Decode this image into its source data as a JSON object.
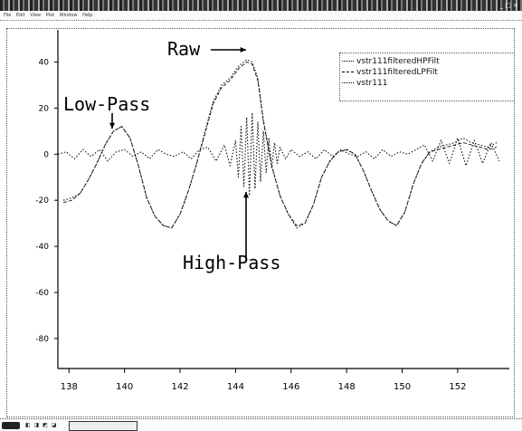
{
  "window": {
    "title": "",
    "controls": "_ □ ×"
  },
  "menubar": {
    "items": [
      "File",
      "Edit",
      "View",
      "Plot",
      "Window",
      "Help"
    ]
  },
  "annotations": {
    "raw": "Raw",
    "low_pass": "Low-Pass",
    "high_pass": "High-Pass"
  },
  "legend": {
    "entries": [
      {
        "label": "vstr111filteredHPFilt",
        "style": "dotted"
      },
      {
        "label": "vstr111filteredLPFilt",
        "style": "dashed"
      },
      {
        "label": "vstr111",
        "style": "dotted"
      }
    ]
  },
  "taskbar": {
    "tray": "◧ ◨ ◩ ◪",
    "task_label": "",
    "clock": ""
  },
  "chart_data": {
    "type": "line",
    "title": "",
    "xlabel": "",
    "ylabel": "",
    "xlim": [
      137.6,
      153.6
    ],
    "ylim": [
      -93,
      50
    ],
    "x_ticks": [
      138,
      140,
      142,
      144,
      146,
      148,
      150,
      152
    ],
    "y_ticks": [
      40,
      20,
      0,
      -20,
      -40,
      -60,
      -80
    ],
    "grid": false,
    "legend_position": "top-right",
    "series": [
      {
        "name": "vstr111",
        "style": "dotted",
        "x": [
          137.8,
          138.1,
          138.4,
          138.7,
          139.0,
          139.3,
          139.6,
          139.9,
          140.2,
          140.5,
          140.8,
          141.1,
          141.4,
          141.7,
          142.0,
          142.3,
          142.6,
          142.9,
          143.2,
          143.5,
          143.8,
          144.1,
          144.4,
          144.6,
          144.8,
          145.0,
          145.3,
          145.6,
          145.9,
          146.2,
          146.5,
          146.8,
          147.1,
          147.4,
          147.7,
          148.0,
          148.3,
          148.6,
          148.9,
          149.2,
          149.5,
          149.8,
          150.1,
          150.4,
          150.7,
          151.0,
          151.3,
          151.6,
          151.9,
          152.2,
          152.5,
          152.8,
          153.1,
          153.4
        ],
        "values": [
          -20,
          -19,
          -17,
          -11,
          -4,
          4,
          10,
          12,
          7,
          -5,
          -19,
          -27,
          -31,
          -32,
          -26,
          -16,
          -4,
          10,
          23,
          30,
          33,
          38,
          41,
          40,
          33,
          15,
          -5,
          -18,
          -26,
          -32,
          -30,
          -22,
          -10,
          -3,
          1,
          2,
          0,
          -7,
          -16,
          -24,
          -29,
          -31,
          -25,
          -13,
          -4,
          1,
          3,
          4,
          5,
          7,
          5,
          4,
          3,
          5
        ]
      },
      {
        "name": "vstr111filteredLPFilt",
        "style": "dashed",
        "x": [
          137.8,
          138.1,
          138.4,
          138.7,
          139.0,
          139.3,
          139.6,
          139.9,
          140.2,
          140.5,
          140.8,
          141.1,
          141.4,
          141.7,
          142.0,
          142.3,
          142.6,
          142.9,
          143.2,
          143.5,
          143.8,
          144.1,
          144.4,
          144.6,
          144.8,
          145.0,
          145.3,
          145.6,
          145.9,
          146.2,
          146.5,
          146.8,
          147.1,
          147.4,
          147.7,
          148.0,
          148.3,
          148.6,
          148.9,
          149.2,
          149.5,
          149.8,
          150.1,
          150.4,
          150.7,
          151.0,
          151.3,
          151.6,
          151.9,
          152.2,
          152.5,
          152.8,
          153.1,
          153.4
        ],
        "values": [
          -21,
          -20,
          -17,
          -11,
          -4,
          4,
          10,
          12,
          7,
          -5,
          -19,
          -27,
          -31,
          -32,
          -26,
          -16,
          -4,
          9,
          22,
          29,
          32,
          37,
          40,
          39,
          32,
          14,
          -5,
          -18,
          -26,
          -31,
          -30,
          -22,
          -10,
          -3,
          1,
          2,
          0,
          -7,
          -16,
          -24,
          -29,
          -31,
          -25,
          -13,
          -4,
          1,
          2,
          3,
          4,
          5,
          4,
          3,
          2,
          3
        ]
      },
      {
        "name": "vstr111filteredHPFilt",
        "style": "dotted",
        "x": [
          137.6,
          137.9,
          138.2,
          138.5,
          138.8,
          139.1,
          139.4,
          139.7,
          140.0,
          140.3,
          140.6,
          140.9,
          141.2,
          141.5,
          141.8,
          142.1,
          142.4,
          142.7,
          143.0,
          143.3,
          143.6,
          143.8,
          144.0,
          144.1,
          144.2,
          144.3,
          144.4,
          144.5,
          144.6,
          144.7,
          144.8,
          144.9,
          145.0,
          145.1,
          145.2,
          145.3,
          145.4,
          145.5,
          145.6,
          145.8,
          146.0,
          146.3,
          146.6,
          146.9,
          147.2,
          147.5,
          147.8,
          148.1,
          148.4,
          148.7,
          149.0,
          149.3,
          149.6,
          149.9,
          150.2,
          150.5,
          150.8,
          151.1,
          151.4,
          151.7,
          152.0,
          152.3,
          152.6,
          152.9,
          153.2,
          153.5
        ],
        "values": [
          0,
          1,
          -2,
          2,
          -1,
          2,
          -3,
          1,
          2,
          -1,
          1,
          -2,
          2,
          0,
          -1,
          1,
          -2,
          2,
          3,
          -3,
          4,
          -5,
          6,
          -10,
          12,
          -14,
          16,
          -18,
          18,
          -15,
          14,
          -12,
          10,
          -8,
          7,
          -6,
          5,
          -4,
          3,
          -2,
          2,
          -1,
          1,
          -2,
          2,
          -1,
          2,
          0,
          -1,
          1,
          -2,
          2,
          -1,
          1,
          0,
          2,
          4,
          -3,
          6,
          -4,
          7,
          -5,
          6,
          -4,
          5,
          -3
        ]
      }
    ]
  }
}
